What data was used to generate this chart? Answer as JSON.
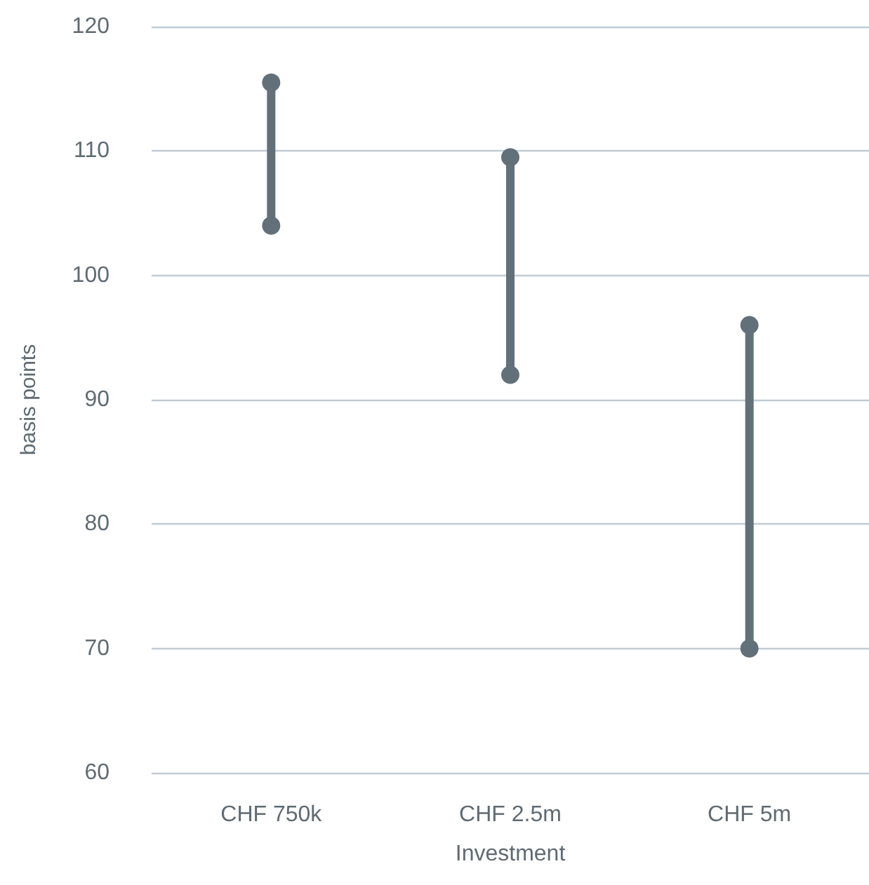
{
  "chart_data": {
    "type": "line",
    "xlabel": "Investment",
    "ylabel": "basis points",
    "categories": [
      "CHF 750k",
      "CHF 2.5m",
      "CHF 5m"
    ],
    "series": [
      {
        "x": [
          "CHF 750k",
          "CHF 750k"
        ],
        "values": [
          104,
          115.5
        ],
        "color": "#627079"
      },
      {
        "x": [
          "CHF 2.5m",
          "CHF 2.5m"
        ],
        "values": [
          92,
          109.5
        ],
        "color": "#627079"
      },
      {
        "x": [
          "CHF 5m",
          "CHF 5m"
        ],
        "values": [
          70,
          96
        ],
        "color": "#627079"
      }
    ],
    "marker": "circle",
    "line_style": "solid",
    "ylim": [
      60,
      120
    ],
    "yticks": [
      60,
      70,
      80,
      90,
      100,
      110,
      120
    ],
    "grid": "y"
  }
}
